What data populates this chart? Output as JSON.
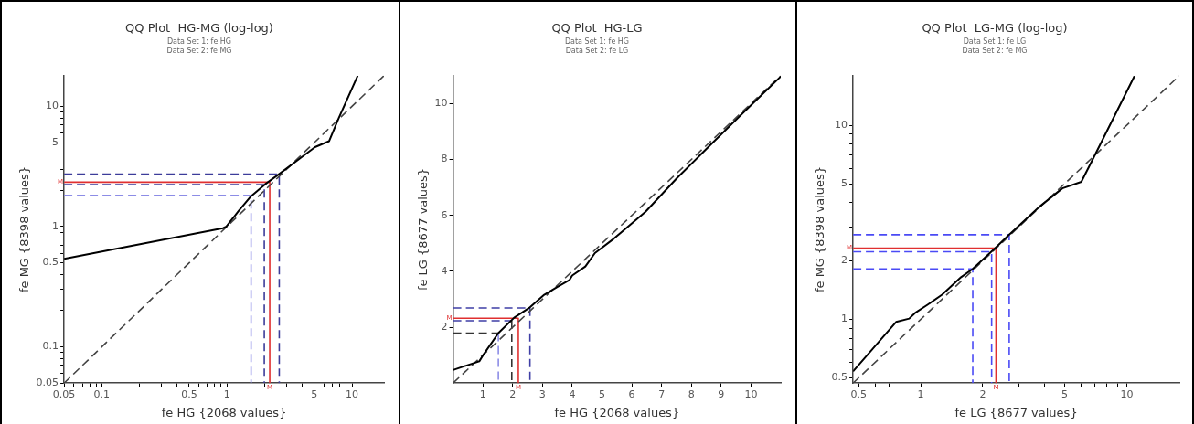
{
  "chart_data": [
    {
      "type": "line",
      "title": "QQ Plot  HG-MG (log-log)",
      "subtitle": "Data Set 1: fe HG\nData Set 2: fe MG",
      "xlabel": "fe HG {2068 values}",
      "ylabel": "fe MG {8398 values}",
      "log": "xy",
      "grid": false,
      "legend": false,
      "xlim": [
        0.05,
        18
      ],
      "ylim": [
        0.05,
        18
      ],
      "xticks": [
        0.05,
        {
          "value": 0.06,
          "label": null
        },
        {
          "value": 0.07,
          "label": null
        },
        {
          "value": 0.08,
          "label": null
        },
        {
          "value": 0.09,
          "label": null
        },
        0.1,
        {
          "value": 0.2,
          "label": null
        },
        {
          "value": 0.3,
          "label": null
        },
        {
          "value": 0.4,
          "label": null
        },
        0.5,
        {
          "value": 0.6,
          "label": null
        },
        {
          "value": 0.7,
          "label": null
        },
        {
          "value": 0.8,
          "label": null
        },
        {
          "value": 0.9,
          "label": null
        },
        1,
        {
          "value": 2,
          "label": null
        },
        {
          "value": 3,
          "label": null
        },
        {
          "value": 4,
          "label": null
        },
        5,
        {
          "value": 6,
          "label": null
        },
        {
          "value": 7,
          "label": null
        },
        {
          "value": 8,
          "label": null
        },
        {
          "value": 9,
          "label": null
        },
        10
      ],
      "yticks": [
        0.05,
        {
          "value": 0.06,
          "label": null
        },
        {
          "value": 0.07,
          "label": null
        },
        {
          "value": 0.08,
          "label": null
        },
        {
          "value": 0.09,
          "label": null
        },
        0.1,
        {
          "value": 0.2,
          "label": null
        },
        {
          "value": 0.3,
          "label": null
        },
        {
          "value": 0.4,
          "label": null
        },
        0.5,
        {
          "value": 0.6,
          "label": null
        },
        {
          "value": 0.7,
          "label": null
        },
        {
          "value": 0.8,
          "label": null
        },
        {
          "value": 0.9,
          "label": null
        },
        1,
        {
          "value": 2,
          "label": null
        },
        {
          "value": 3,
          "label": null
        },
        {
          "value": 4,
          "label": null
        },
        5,
        {
          "value": 6,
          "label": null
        },
        {
          "value": 7,
          "label": null
        },
        {
          "value": 8,
          "label": null
        },
        {
          "value": 9,
          "label": null
        },
        10
      ],
      "series": [
        {
          "color": "#000000",
          "line_style": "solid",
          "x": [
            0.05,
            0.93,
            0.99,
            1.24,
            1.56,
            2.02,
            2.62,
            3.91,
            5.06,
            6.55,
            7.78,
            11.1
          ],
          "values": [
            0.54,
            0.97,
            1.0,
            1.35,
            1.79,
            2.25,
            2.74,
            3.75,
            4.58,
            5.13,
            7.87,
            18
          ]
        },
        {
          "color": "#444444",
          "line_style": "dashed",
          "x": [
            0.05,
            18
          ],
          "values": [
            0.05,
            18
          ]
        },
        {
          "color": "#8c8ce6",
          "line_style": "dashed",
          "x": [
            0.05,
            1.56,
            1.56
          ],
          "values": [
            1.82,
            1.82,
            0.05
          ]
        },
        {
          "color": "#3c3c9a",
          "line_style": "dashed",
          "x": [
            0.05,
            1.99,
            1.99
          ],
          "values": [
            2.23,
            2.23,
            0.05
          ]
        },
        {
          "color": "#e03030",
          "line_style": "solid",
          "x": [
            0.05,
            2.2,
            2.2
          ],
          "values": [
            2.34,
            2.34,
            0.05
          ]
        },
        {
          "color": "#3c3c9a",
          "line_style": "dashed",
          "x": [
            0.05,
            2.62,
            2.62
          ],
          "values": [
            2.73,
            2.73,
            0.05
          ]
        }
      ],
      "annotations": [
        {
          "text": "M",
          "x": 0.05,
          "y": 2.34
        },
        {
          "text": "M",
          "x": 2.2,
          "y": 0.05
        }
      ]
    },
    {
      "type": "line",
      "title": "QQ Plot  HG-LG",
      "subtitle": "Data Set 1: fe HG\nData Set 2: fe LG",
      "xlabel": "fe HG {2068 values}",
      "ylabel": "fe LG {8677 values}",
      "grid": false,
      "legend": false,
      "xlim": [
        0,
        11
      ],
      "ylim": [
        0,
        11
      ],
      "xticks": [
        1,
        2,
        3,
        4,
        5,
        6,
        7,
        8,
        9,
        10
      ],
      "yticks": [
        2,
        4,
        6,
        8,
        10
      ],
      "series": [
        {
          "color": "#000000",
          "line_style": "solid",
          "x": [
            0,
            0.88,
            1.04,
            1.52,
            2.05,
            2.58,
            3.06,
            3.48,
            3.91,
            4.0,
            4.44,
            4.76,
            5.4,
            6.46,
            7.52,
            8.58,
            9.64,
            11
          ],
          "values": [
            0.47,
            0.78,
            1.05,
            1.79,
            2.34,
            2.71,
            3.16,
            3.43,
            3.69,
            3.85,
            4.17,
            4.65,
            5.17,
            6.13,
            7.34,
            8.46,
            9.57,
            10.97
          ]
        },
        {
          "color": "#444444",
          "line_style": "dashed",
          "x": [
            0,
            11
          ],
          "values": [
            0,
            11
          ]
        },
        {
          "color": "#8c8ce6",
          "line_style": "dashed",
          "x": [
            1.52,
            1.52
          ],
          "values": [
            1.79,
            0
          ]
        },
        {
          "color": "#333333",
          "line_style": "dashed",
          "x": [
            0,
            1.52
          ],
          "values": [
            1.79,
            1.79
          ]
        },
        {
          "color": "#333333",
          "line_style": "dashed",
          "x": [
            1.97,
            1.97
          ],
          "values": [
            2.23,
            0
          ]
        },
        {
          "color": "#3f3fa6",
          "line_style": "dashed",
          "x": [
            0,
            1.97
          ],
          "values": [
            2.23,
            2.23
          ]
        },
        {
          "color": "#e03030",
          "line_style": "solid",
          "x": [
            0,
            2.19,
            2.19
          ],
          "values": [
            2.32,
            2.32,
            0
          ]
        },
        {
          "color": "#3f3fa6",
          "line_style": "dashed",
          "x": [
            0,
            2.58,
            2.58
          ],
          "values": [
            2.69,
            2.69,
            0
          ]
        }
      ],
      "annotations": [
        {
          "text": "M",
          "x": 0,
          "y": 2.32
        },
        {
          "text": "M",
          "x": 2.19,
          "y": 0
        }
      ]
    },
    {
      "type": "line",
      "title": "QQ Plot  LG-MG (log-log)",
      "subtitle": "Data Set 1: fe LG\nData Set 2: fe MG",
      "xlabel": "fe LG {8677 values}",
      "ylabel": "fe MG {8398 values}",
      "log": "xy",
      "grid": false,
      "legend": false,
      "xlim": [
        0.47,
        18
      ],
      "ylim": [
        0.47,
        18
      ],
      "xticks": [
        0.5,
        {
          "value": 0.6,
          "label": null
        },
        {
          "value": 0.7,
          "label": null
        },
        {
          "value": 0.8,
          "label": null
        },
        {
          "value": 0.9,
          "label": null
        },
        1,
        2,
        {
          "value": 3,
          "label": null
        },
        {
          "value": 4,
          "label": null
        },
        5,
        {
          "value": 6,
          "label": null
        },
        {
          "value": 7,
          "label": null
        },
        {
          "value": 8,
          "label": null
        },
        {
          "value": 9,
          "label": null
        },
        10
      ],
      "yticks": [
        0.5,
        {
          "value": 0.6,
          "label": null
        },
        {
          "value": 0.7,
          "label": null
        },
        {
          "value": 0.8,
          "label": null
        },
        {
          "value": 0.9,
          "label": null
        },
        1,
        2,
        {
          "value": 3,
          "label": null
        },
        {
          "value": 4,
          "label": null
        },
        5,
        {
          "value": 6,
          "label": null
        },
        {
          "value": 7,
          "label": null
        },
        {
          "value": 8,
          "label": null
        },
        {
          "value": 9,
          "label": null
        },
        10
      ],
      "series": [
        {
          "color": "#000000",
          "line_style": "solid",
          "x": [
            0.47,
            0.76,
            0.88,
            0.94,
            1.08,
            1.27,
            1.57,
            1.79,
            2.3,
            2.69,
            3.8,
            4.87,
            6.02,
            6.95,
            10.9
          ],
          "values": [
            0.54,
            0.97,
            1.01,
            1.08,
            1.19,
            1.34,
            1.65,
            1.82,
            2.33,
            2.73,
            3.83,
            4.73,
            5.11,
            6.9,
            17.9
          ]
        },
        {
          "color": "#444444",
          "line_style": "dashed",
          "x": [
            0.47,
            18
          ],
          "values": [
            0.47,
            18
          ]
        },
        {
          "color": "#4a4af5",
          "line_style": "dashed",
          "x": [
            0.47,
            1.79,
            1.79
          ],
          "values": [
            1.82,
            1.82,
            0.47
          ]
        },
        {
          "color": "#4a4af5",
          "line_style": "dashed",
          "x": [
            0.47,
            2.21,
            2.21
          ],
          "values": [
            2.23,
            2.23,
            0.47
          ]
        },
        {
          "color": "#e03030",
          "line_style": "solid",
          "x": [
            0.47,
            2.32,
            2.32
          ],
          "values": [
            2.33,
            2.33,
            0.47
          ]
        },
        {
          "color": "#4a4af5",
          "line_style": "dashed",
          "x": [
            0.47,
            2.69,
            2.69
          ],
          "values": [
            2.73,
            2.73,
            0.47
          ]
        }
      ],
      "annotations": [
        {
          "text": "M",
          "x": 0.47,
          "y": 2.33
        },
        {
          "text": "M",
          "x": 2.32,
          "y": 0.47
        }
      ]
    }
  ]
}
